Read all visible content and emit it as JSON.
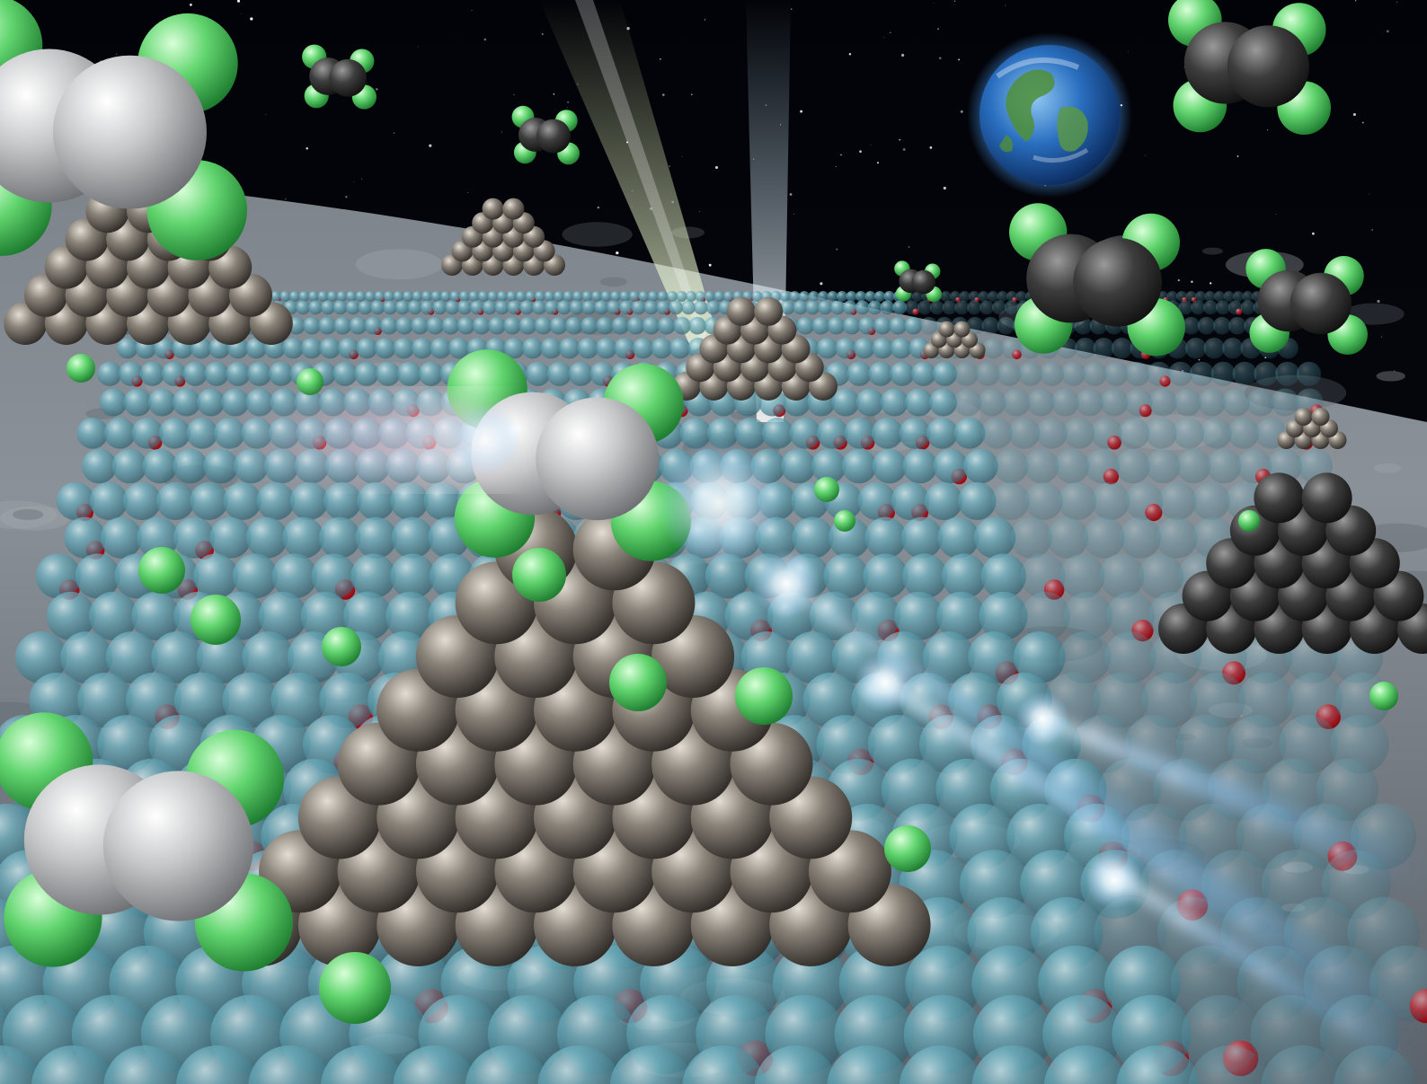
{
  "scene": {
    "colors": {
      "space": "#05070c",
      "lunar_surface": "#8a9096",
      "lunar_shadow": "#4d545b",
      "support_atom": "#5a9eae",
      "oxygen_atom": "#e0121a",
      "cluster_atom": "#6f6a63",
      "carbon_atom": "#c8c9cb",
      "hydrogen_atom": "#5fd36e",
      "beam_light": "#eaf7ff",
      "beam_blue": "#5fb4ff",
      "earth_ocean": "#1f5fb0",
      "earth_land": "#4f8f3a"
    }
  }
}
